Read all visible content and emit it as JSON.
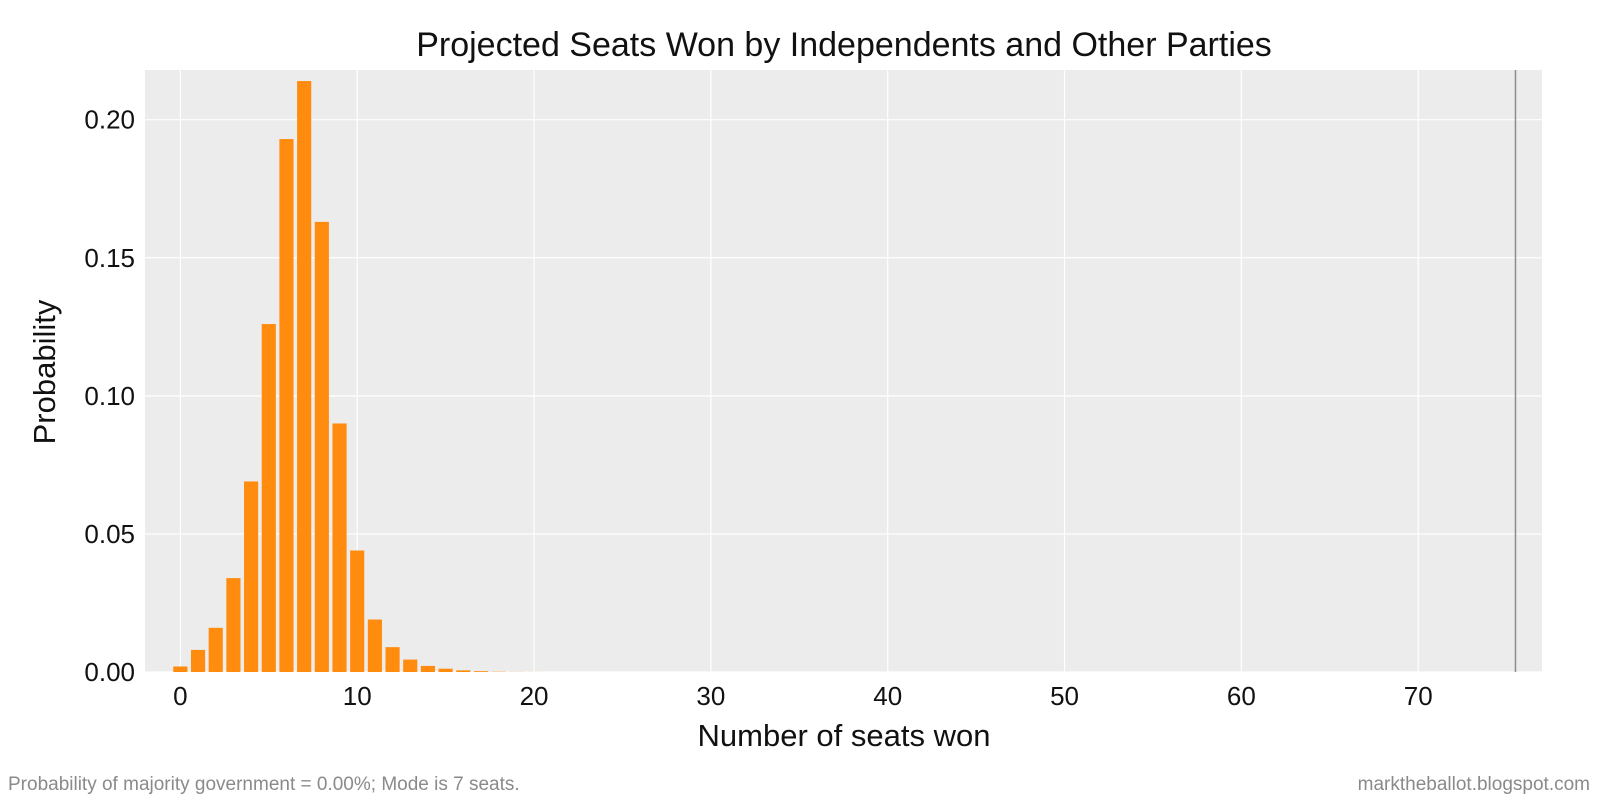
{
  "chart_data": {
    "type": "bar",
    "title": "Projected Seats Won by Independents and Other Parties",
    "xlabel": "Number of seats won",
    "ylabel": "Probability",
    "x": [
      0,
      1,
      2,
      3,
      4,
      5,
      6,
      7,
      8,
      9,
      10,
      11,
      12,
      13,
      14,
      15,
      16,
      17,
      18,
      19,
      20
    ],
    "values": [
      0.002,
      0.008,
      0.016,
      0.034,
      0.069,
      0.126,
      0.193,
      0.214,
      0.163,
      0.09,
      0.044,
      0.019,
      0.009,
      0.0045,
      0.0022,
      0.0012,
      0.0006,
      0.0003,
      0.0001,
      5e-05,
      2e-05
    ],
    "xlim": [
      -2,
      77
    ],
    "ylim": [
      0,
      0.218
    ],
    "xticks": [
      0,
      10,
      20,
      30,
      40,
      50,
      60,
      70
    ],
    "xtick_labels": [
      "0",
      "10",
      "20",
      "30",
      "40",
      "50",
      "60",
      "70"
    ],
    "yticks": [
      0,
      0.05,
      0.1,
      0.15,
      0.2
    ],
    "ytick_labels": [
      "0.00",
      "0.05",
      "0.10",
      "0.15",
      "0.20"
    ],
    "reference_line_x": 75.5,
    "grid": true,
    "colors": {
      "bar": "#ff8c0f",
      "plot_background": "#ececec",
      "grid": "#ffffff",
      "reference_line": "#8c8c8c"
    }
  },
  "footer": {
    "left": "Probability of majority government = 0.00%; Mode is 7 seats.",
    "right": "marktheballot.blogspot.com"
  }
}
